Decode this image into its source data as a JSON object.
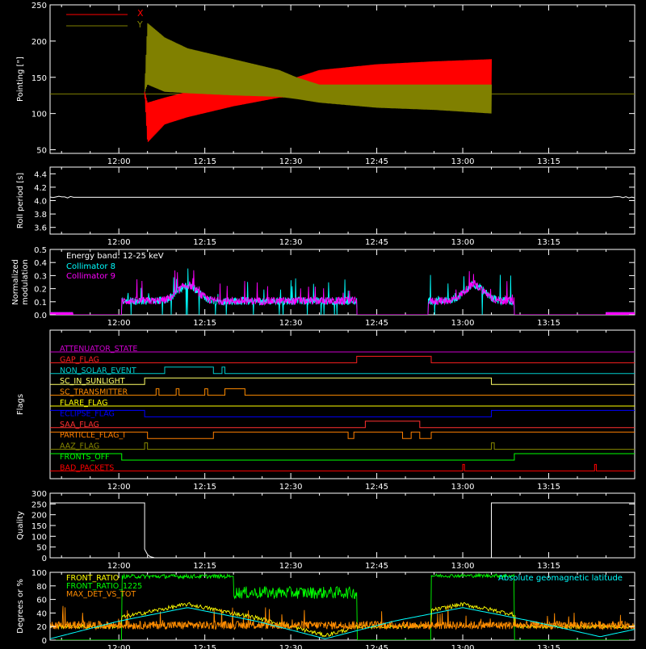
{
  "chart_data": [
    {
      "type": "line",
      "ylabel": "Pointing [\"]",
      "x_ticks": [
        "12:00",
        "12:15",
        "12:30",
        "12:45",
        "13:00",
        "13:15"
      ],
      "x_tick_minutes": [
        0,
        15,
        30,
        45,
        60,
        75
      ],
      "xlim_minutes": [
        -12,
        90
      ],
      "ylim": [
        45,
        250
      ],
      "y_ticks": [
        50,
        100,
        150,
        200,
        250
      ],
      "legend": [
        {
          "name": "X",
          "color": "#ff0000"
        },
        {
          "name": "Y",
          "color": "#808000"
        }
      ],
      "reference_line": {
        "value": 127,
        "color": "#808000"
      },
      "series": [
        {
          "name": "X",
          "color": "#ff0000",
          "x_start": 4.5,
          "x_end": 65,
          "envelope_x": [
            4.5,
            5,
            8,
            12,
            20,
            28,
            31,
            35,
            45,
            55,
            65
          ],
          "envelope_low": [
            130,
            60,
            85,
            95,
            110,
            122,
            123,
            127,
            132,
            132,
            130
          ],
          "envelope_high": [
            130,
            115,
            122,
            130,
            135,
            140,
            150,
            160,
            168,
            172,
            175
          ]
        },
        {
          "name": "Y",
          "color": "#808000",
          "x_start": 4.5,
          "x_end": 65,
          "envelope_x": [
            4.5,
            5,
            8,
            12,
            20,
            28,
            31,
            35,
            45,
            55,
            65
          ],
          "envelope_low": [
            130,
            140,
            130,
            128,
            125,
            123,
            120,
            115,
            108,
            105,
            100
          ],
          "envelope_high": [
            130,
            225,
            205,
            190,
            175,
            160,
            150,
            140,
            140,
            140,
            140
          ]
        }
      ]
    },
    {
      "type": "line",
      "ylabel": "Roll period [s]",
      "x_ticks": [
        "12:00",
        "12:15",
        "12:30",
        "12:45",
        "13:00",
        "13:15"
      ],
      "ylim": [
        3.5,
        4.5
      ],
      "y_ticks": [
        3.6,
        3.8,
        4.0,
        4.2,
        4.4
      ],
      "y_tick_labels": [
        "3.6",
        "3.8",
        "4.0",
        "4.2",
        "4.4"
      ],
      "series": [
        {
          "name": "",
          "color": "#ffffff",
          "x": [
            -12,
            90
          ],
          "y": [
            4.05,
            4.05
          ]
        }
      ]
    },
    {
      "type": "line",
      "ylabel": "Normalized modulation",
      "ylabel_lines": [
        "Normalized",
        "modulation"
      ],
      "x_ticks": [
        "12:00",
        "12:15",
        "12:30",
        "12:45",
        "13:00",
        "13:15"
      ],
      "ylim": [
        0,
        0.5
      ],
      "y_ticks": [
        0.0,
        0.1,
        0.2,
        0.3,
        0.4,
        0.5
      ],
      "y_tick_labels": [
        "0.0",
        "0.1",
        "0.2",
        "0.3",
        "0.4",
        "0.5"
      ],
      "annotation": "Energy band: 12-25 keV",
      "series": [
        {
          "name": "Collimator 8",
          "color": "#00ffff"
        },
        {
          "name": "Collimator 9",
          "color": "#ff00ff"
        }
      ],
      "active_intervals": [
        [
          0.5,
          41.5
        ],
        [
          54,
          69
        ]
      ],
      "peak_centers": [
        12,
        62
      ]
    },
    {
      "type": "line",
      "ylabel": "Flags",
      "x_ticks": [
        "12:00",
        "12:15",
        "12:30",
        "12:45",
        "13:00",
        "13:15"
      ],
      "flags": [
        {
          "name": "ATTENUATOR_STATE",
          "color": "#cc00cc",
          "high": []
        },
        {
          "name": "GAP_FLAG",
          "color": "#ff2020",
          "high": [
            [
              41.5,
              54.5
            ]
          ]
        },
        {
          "name": "NON_SOLAR_EVENT",
          "color": "#00cccc",
          "high": [
            [
              8,
              16.5
            ],
            [
              18,
              18.5
            ]
          ]
        },
        {
          "name": "SC_IN_SUNLIGHT",
          "color": "#ffff66",
          "high": [
            [
              4.5,
              65
            ]
          ]
        },
        {
          "name": "SC_TRANSMITTER",
          "color": "#ff8c00",
          "high": [
            [
              6.5,
              7
            ],
            [
              10,
              10.5
            ],
            [
              15,
              15.5
            ],
            [
              18.5,
              22
            ]
          ]
        },
        {
          "name": "FLARE_FLAG",
          "color": "#ffff00",
          "high": []
        },
        {
          "name": "ECLIPSE_FLAG",
          "color": "#0000ff",
          "high": [
            [
              -12,
              4.5
            ],
            [
              65,
              90
            ]
          ]
        },
        {
          "name": "SAA_FLAG",
          "color": "#ff3030",
          "high": [
            [
              43,
              52.5
            ]
          ]
        },
        {
          "name": "PARTICLE_FLAG_I",
          "color": "#ff7f00",
          "high": [
            [
              -12,
              5
            ],
            [
              16.5,
              40
            ],
            [
              41,
              49.5
            ],
            [
              51,
              52.5
            ],
            [
              54.5,
              90
            ]
          ]
        },
        {
          "name": "AAZ_FLAG",
          "color": "#888800",
          "high": [
            [
              4.5,
              5
            ],
            [
              65,
              65.5
            ]
          ]
        },
        {
          "name": "FRONTS_OFF",
          "color": "#00ff00",
          "high": [
            [
              -12,
              0.5
            ],
            [
              69,
              90
            ]
          ]
        },
        {
          "name": "BAD_PACKETS",
          "color": "#ff0000",
          "high": [
            [
              60,
              60.3
            ],
            [
              83,
              83.3
            ]
          ]
        }
      ]
    },
    {
      "type": "line",
      "ylabel": "Quality",
      "x_ticks": [
        "12:00",
        "12:15",
        "12:30",
        "12:45",
        "13:00",
        "13:15"
      ],
      "ylim": [
        0,
        300
      ],
      "y_ticks": [
        0,
        50,
        100,
        150,
        200,
        250,
        300
      ],
      "series": [
        {
          "name": "",
          "color": "#ffffff",
          "x": [
            -12,
            4.5,
            4.5,
            5,
            5.5,
            6,
            6.2,
            64.8,
            65,
            65,
            90
          ],
          "y": [
            255,
            255,
            40,
            15,
            5,
            2,
            0,
            0,
            0,
            255,
            255
          ]
        }
      ]
    },
    {
      "type": "line",
      "ylabel": "Degrees or %",
      "x_ticks": [
        "12:00",
        "12:15",
        "12:30",
        "12:45",
        "13:00",
        "13:15"
      ],
      "ylim": [
        0,
        100
      ],
      "y_ticks": [
        0,
        20,
        40,
        60,
        80,
        100
      ],
      "annotation": "Absolute geomagnetic latitude",
      "annotation_color": "#00ffff",
      "series": [
        {
          "name": "FRONT_RATIO",
          "color": "#ffff00"
        },
        {
          "name": "FRONT_RATIO_1225",
          "color": "#00ff00"
        },
        {
          "name": "MAX_DET_VS_TOT",
          "color": "#ff8c00"
        }
      ],
      "latitude": {
        "x": [
          -12,
          0,
          12,
          24,
          36,
          48,
          60,
          72,
          84,
          90
        ],
        "y": [
          2,
          28,
          48,
          28,
          2,
          28,
          48,
          28,
          5,
          16
        ]
      }
    }
  ]
}
